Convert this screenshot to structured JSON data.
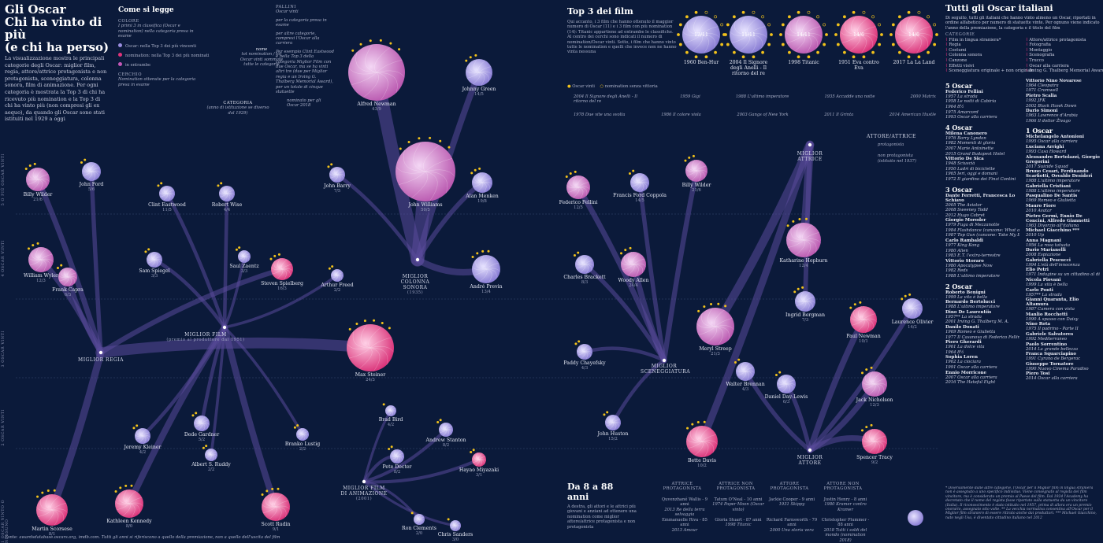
{
  "header": {
    "title_line1": "Gli Oscar",
    "title_line2": "Chi ha vinto di più",
    "title_line3": "(e chi ha perso)",
    "intro": "La visualizzazione mostra le principali categorie degli Oscar: miglior film, regia, attore/attrice protagonista e non protagonista, sceneggiatura, colonna sonora, film di animazione. Per ogni categoria è mostrata la Top 3 di chi ha ricevuto più nomination e la Top 3 di chi ha vinto più (non compresi gli ex aequo), da quando gli Oscar sono stati istituiti nel 1929 a oggi"
  },
  "legend": {
    "title": "Come si legge",
    "colore_label": "COLORE",
    "colore_desc": "I primi 3 in classifica (Oscar e nomination) nella categoria presa in esame",
    "item_oscar": "Oscar: nella Top 3 dei più vincenti",
    "item_nomination": "nomination: nella Top 3 dei più nominati",
    "item_entrambe": "in entrambe",
    "cerchio_label": "CERCHIO",
    "cerchio_desc": "Nomination ottenute per la categoria presa in esame",
    "nome_label": "nome",
    "nome_desc": "tot nomination / tot Oscar vinti sommate tutte le categorie",
    "categoria_label": "CATEGORIA",
    "categoria_desc": "(anno di istituzione se diverso dal 1929)",
    "pallini_label": "PALLINI",
    "pallini_sub": "Oscar vinti",
    "pallini_a": "per la categoria presa in esame",
    "pallini_b": "per altre categorie, compresi l'Oscar alla carriera",
    "pallini_example": "Per esempio Clint Eastwood è nella Top 3 della categoria Miglior Film con due Oscar, ma se ha vinti altri tre (due per Miglior regia e un Irving G. Thalberg Memorial Award), per un totale di cinque statuette",
    "nominated_2018": "nominato per gli Oscar 2018"
  },
  "bands": [
    "5 O PIÙ OSCAR VINTI",
    "4 OSCAR VINTI",
    "3 OSCAR VINTI",
    "2 OSCAR VINTI",
    "1 OSCAR VINTO O NESSUNO"
  ],
  "categories": {
    "regia": "MIGLIOR REGIA",
    "film": "MIGLIOR FILM",
    "film_sub": "(premio al produttore dal 1951)",
    "colonna": "MIGLIOR COLONNA SONORA",
    "colonna_sub": "(1935)",
    "animazione": "MIGLIOR FILM DI ANIMAZIONE",
    "animazione_sub": "(2001)",
    "attrice": "MIGLIOR ATTRICE",
    "sceneggiatura": "MIGLIOR SCENEGGIATURA",
    "attore": "MIGLIOR ATTORE",
    "attore_attrice": "ATTORE/ATTRICE",
    "protagonista": "protagonista",
    "non_protagonista": "non protagonista (istituito nel 1937)"
  },
  "people": [
    {
      "name": "Billy Wilder",
      "stat": "21/6"
    },
    {
      "name": "John Ford",
      "stat": "5/6"
    },
    {
      "name": "Clint Eastwood",
      "stat": "11/5"
    },
    {
      "name": "Robert Wise",
      "stat": "4/4"
    },
    {
      "name": "William Wyler",
      "stat": "12/3"
    },
    {
      "name": "Frank Capra",
      "stat": "6/3"
    },
    {
      "name": "Sam Spiegel",
      "stat": "3/3"
    },
    {
      "name": "Saul Zaentz",
      "stat": "3/3"
    },
    {
      "name": "Steven Spielberg",
      "stat": "16/3"
    },
    {
      "name": "Arthur Freed",
      "stat": "2/2"
    },
    {
      "name": "John Barry",
      "stat": "7/5"
    },
    {
      "name": "Alfred Newman",
      "stat": "43/9"
    },
    {
      "name": "Johnny Green",
      "stat": "14/5"
    },
    {
      "name": "John Williams",
      "stat": "50/5"
    },
    {
      "name": "Alan Menken",
      "stat": "19/8"
    },
    {
      "name": "André Previn",
      "stat": "13/4"
    },
    {
      "name": "Max Steiner",
      "stat": "24/3"
    },
    {
      "name": "Jeremy Kleiner",
      "stat": "4/2"
    },
    {
      "name": "Dede Gardner",
      "stat": "5/2"
    },
    {
      "name": "Albert S. Ruddy",
      "stat": "2/2"
    },
    {
      "name": "Branko Lustig",
      "stat": "2/2"
    },
    {
      "name": "Martin Scorsese",
      "stat": "8/1"
    },
    {
      "name": "Kathleen Kennedy",
      "stat": "8/0"
    },
    {
      "name": "Scott Rudin",
      "stat": "9/1"
    },
    {
      "name": "Brad Bird",
      "stat": "4/2"
    },
    {
      "name": "Andrew Stanton",
      "stat": "8/2"
    },
    {
      "name": "Pete Docter",
      "stat": "8/2"
    },
    {
      "name": "Hayao Miyazaki",
      "stat": "3/1"
    },
    {
      "name": "Ron Clements",
      "stat": "2/0"
    },
    {
      "name": "Chris Sanders",
      "stat": "3/0"
    },
    {
      "name": "Federico Fellini",
      "stat": "12/5"
    },
    {
      "name": "Francis Ford Coppola",
      "stat": "14/5"
    },
    {
      "name": "Billy Wilder",
      "stat": "21/6"
    },
    {
      "name": "Katharine Hepburn",
      "stat": "12/4"
    },
    {
      "name": "Charles Brackett",
      "stat": "8/3"
    },
    {
      "name": "Woody Allen",
      "stat": "24/4"
    },
    {
      "name": "Ingrid Bergman",
      "stat": "7/3"
    },
    {
      "name": "Meryl Streep",
      "stat": "21/3"
    },
    {
      "name": "Paul Newman",
      "stat": "10/1"
    },
    {
      "name": "Laurence Olivier",
      "stat": "14/2"
    },
    {
      "name": "Paddy Chayefsky",
      "stat": "4/3"
    },
    {
      "name": "Walter Brennan",
      "stat": "4/3"
    },
    {
      "name": "Daniel Day-Lewis",
      "stat": "6/3"
    },
    {
      "name": "Jack Nicholson",
      "stat": "12/3"
    },
    {
      "name": "John Huston",
      "stat": "15/2"
    },
    {
      "name": "Bette Davis",
      "stat": "10/2"
    },
    {
      "name": "Spencer Tracy",
      "stat": "9/2"
    }
  ],
  "top3": {
    "title": "Top 3 dei film",
    "desc": "Qui accanto, i 3 film che hanno ottenuto il maggior numero di Oscar (11) e i 3 film con più nomination (14): Titanic appartiene ad entrambe le classifiche. Al centro dei cerchi sono indicati il numero di nomination/Oscar vinti. Sotto, i film che hanno vinto tutte le nomination e quelli che invece non ne hanno vinta nessuna",
    "films": [
      {
        "year": "1960",
        "title": "Ben-Hur",
        "stat": "12/11"
      },
      {
        "year": "2004",
        "title": "Il Signore degli Anelli - Il ritorno del re",
        "stat": "11/11"
      },
      {
        "year": "1998",
        "title": "Titanic",
        "stat": "14/11"
      },
      {
        "year": "1951",
        "title": "Eva contro Eva",
        "stat": "14/6"
      },
      {
        "year": "2017",
        "title": "La La Land",
        "stat": "14/6"
      }
    ],
    "legend_won": "Oscar vinti",
    "legend_lost": "nomination senza vittoria",
    "row1": [
      "2004 Il Signore degli Anelli - Il ritorno del re",
      "1959 Gigi",
      "1988 L'ultimo imperatore",
      "1935 Accadde una notte",
      "2000 Matrix"
    ],
    "row2": [
      "1978 Due vite una svolta",
      "1986 Il colore viola",
      "2003 Gangs of New York",
      "2011 Il Grinta",
      "2014 American Hustle"
    ]
  },
  "ages": {
    "title": "Da 8 a 88 anni",
    "desc": "A destra, gli attori e le attrici più giovani e anziani ad ottenere una nomination come miglior attore/attrice protagonista e non protagonista",
    "col_labels": [
      "ATTRICE PROTAGONISTA",
      "ATTRICE NON PROTAGONISTA",
      "ATTORE PROTAGONISTA",
      "ATTORE NON PROTAGONISTA"
    ],
    "young": [
      {
        "name": "Quvenzhané Wallis",
        "age": "9 anni",
        "film": "2013 Re della terra selvaggia"
      },
      {
        "name": "Tatum O'Neal",
        "age": "10 anni",
        "film": "1974 Paper Moon (Oscar vinto)"
      },
      {
        "name": "Jackie Cooper",
        "age": "9 anni",
        "film": "1931 Skippy"
      },
      {
        "name": "Justin Henry",
        "age": "8 anni",
        "film": "1980 Kramer contro Kramer"
      }
    ],
    "old": [
      {
        "name": "Emmanuelle Riva",
        "age": "85 anni",
        "film": "2013 Amour"
      },
      {
        "name": "Gloria Stuart",
        "age": "87 anni",
        "film": "1998 Titanic"
      },
      {
        "name": "Richard Farnsworth",
        "age": "79 anni",
        "film": "2000 Una storia vera"
      },
      {
        "name": "Christopher Plummer",
        "age": "88 anni",
        "film": "2018 Tutti i soldi del mondo (nomination 2018)"
      }
    ]
  },
  "italiani": {
    "title": "Tutti gli Oscar italiani",
    "desc": "Di seguito, tutti gli italiani che hanno vinto almeno un Oscar, riportati in ordine alfabetico per numero di statuette vinte. Per ognuno viene indicato l'anno della premiazione, la categoria e il titolo del film",
    "cat_label": "CATEGORIE",
    "cats_left": [
      "Film in lingua straniera*",
      "Regia",
      "Costumi",
      "Colonna sonora",
      "Canzone",
      "Effetti visivi",
      "Sceneggiatura originale + non originale"
    ],
    "cats_right": [
      "Attore/attrice protagonista",
      "Fotografia",
      "Montaggio",
      "Scenografia",
      "Trucco",
      "Oscar alla carriera",
      "Irving G. Thalberg Memorial Award"
    ],
    "groups_left": [
      {
        "head": "5 Oscar",
        "entries": [
          {
            "name": "Federico Fellini",
            "items": [
              "1957 La strada",
              "1958 Le notti di Cabiria",
              "1964 8½",
              "1975 Amarcord",
              "1993 Oscar alla carriera"
            ]
          },
          {
            "head2": "4 Oscar"
          },
          {
            "name": "Milena Canonero",
            "items": [
              "1976 Barry Lyndon",
              "1982 Momenti di gloria",
              "2007 Marie Antoinette",
              "2015 Grand Budapest Hotel"
            ]
          },
          {
            "name": "Vittorio De Sica",
            "items": [
              "1948 Sciuscià",
              "1950 Ladri di biciclette",
              "1965 Ieri, oggi e domani",
              "1972 Il giardino dei Finzi Contini"
            ]
          }
        ]
      },
      {
        "head": "3 Oscar",
        "entries": [
          {
            "name": "Dante Ferretti, Francesca Lo Schiavo",
            "items": [
              "2005 The Aviator",
              "2008 Sweeney Todd",
              "2012 Hugo Cabret"
            ]
          },
          {
            "name": "Giorgio Moroder",
            "items": [
              "1979 Fuga di Mezzanotte",
              "1984 Flashdance (canzone: What a Feeling)",
              "1987 Top Gun (canzone: Take My Breath Away)"
            ]
          },
          {
            "name": "Carlo Rambaldi",
            "items": [
              "1977 King Kong",
              "1980 Alien",
              "1983 E.T. l'extra-terrestre"
            ]
          },
          {
            "name": "Vittorio Storaro",
            "items": [
              "1980 Apocalypse Now",
              "1982 Reds",
              "1988 L'ultimo imperatore"
            ]
          }
        ]
      },
      {
        "head": "2 Oscar",
        "entries": [
          {
            "name": "Roberto Benigni",
            "items": [
              "1999 La vita è bella"
            ]
          },
          {
            "name": "Bernardo Bertolucci",
            "items": [
              "1988 L'ultimo imperatore"
            ]
          },
          {
            "name": "Dino De Laurentiis",
            "items": [
              "1957** La strada",
              "2001 Irving G. Thalberg M. A."
            ]
          },
          {
            "name": "Danilo Donati",
            "items": [
              "1969 Romeo e Giulietta",
              "1977 Il Casanova di Federico Fellini"
            ]
          },
          {
            "name": "Piero Gherardi",
            "items": [
              "1961 La dolce vita",
              "1964 8½"
            ]
          },
          {
            "name": "Sophia Loren",
            "items": [
              "1962 La ciociara",
              "1991 Oscar alla carriera"
            ]
          },
          {
            "name": "Ennio Morricone",
            "items": [
              "2007 Oscar alla carriera",
              "2016 The Hateful Eight"
            ]
          }
        ]
      }
    ],
    "groups_right": [
      {
        "name": "Vittorio Nino Novarese",
        "items": [
          "1964 Cleopatra",
          "1971 Cromwell"
        ]
      },
      {
        "name": "Pietro Scalia",
        "items": [
          "1992 JFK",
          "2002 Black Hawk Down"
        ]
      },
      {
        "name": "Dario Simoni",
        "items": [
          "1963 Lawrence d'Arabia",
          "1966 Il dottor Živago"
        ]
      },
      {
        "head": "1 Oscar"
      },
      {
        "name": "Michelangelo Antonioni",
        "items": [
          "1995 Oscar alla carriera"
        ]
      },
      {
        "name": "Luciana Arrighi",
        "items": [
          "1993 Casa Howard"
        ]
      },
      {
        "name": "Alessandro Bertolazzi, Giorgio Gregorini",
        "items": [
          "2017 Suicide Squad"
        ]
      },
      {
        "name": "Bruno Cesari, Ferdinando Scarfiotti, Osvaldo Desideri",
        "items": [
          "1988 L'ultimo imperatore"
        ]
      },
      {
        "name": "Gabriella Cristiani",
        "items": [
          "1988 L'ultimo imperatore"
        ]
      },
      {
        "name": "Pasqualino De Santis",
        "items": [
          "1969 Romeo e Giulietta"
        ]
      },
      {
        "name": "Mauro Fiore",
        "items": [
          "2010 Avatar"
        ]
      },
      {
        "name": "Pietro Germi, Ennio De Concini, Alfredo Giannetti",
        "items": [
          "1963 Divorzio all'italiana"
        ]
      },
      {
        "name": "Michael Giacchino ***",
        "items": [
          "2010 Up"
        ]
      },
      {
        "name": "Anna Magnani",
        "items": [
          "1956 La rosa tatuata"
        ]
      },
      {
        "name": "Dario Marianelli",
        "items": [
          "2008 Espiazione"
        ]
      },
      {
        "name": "Gabriella Pescucci",
        "items": [
          "1994 L'età dell'innocenza"
        ]
      },
      {
        "name": "Elio Petri",
        "items": [
          "1971 Indagine su un cittadino al di sopra di ogni sospetto"
        ]
      },
      {
        "name": "Nicola Piovani",
        "items": [
          "1999 La vita è bella"
        ]
      },
      {
        "name": "Carlo Ponti",
        "items": [
          "1957** La strada"
        ]
      },
      {
        "name": "Gianni Quaranta, Elio Altamura",
        "items": [
          "1987 Camera con vista"
        ]
      },
      {
        "name": "Manlio Rocchetti",
        "items": [
          "1990 A spasso con Daisy"
        ]
      },
      {
        "name": "Nino Rota",
        "items": [
          "1975 Il padrino - Parte II"
        ]
      },
      {
        "name": "Gabriele Salvatores",
        "items": [
          "1992 Mediterraneo"
        ]
      },
      {
        "name": "Paolo Sorrentino",
        "items": [
          "2014 La grande bellezza"
        ]
      },
      {
        "name": "Franca Squarciapino",
        "items": [
          "1991 Cyrano de Bergerac"
        ]
      },
      {
        "name": "Giuseppe Tornatore",
        "items": [
          "1990 Nuovo Cinema Paradiso"
        ]
      },
      {
        "name": "Piero Tosi",
        "items": [
          "2014 Oscar alla carriera"
        ]
      }
    ],
    "footnote": "* Diversamente dalle altre categorie, l'Oscar per il Miglior film in lingua straniera non è assegnato a uno specifico individuo. Viene consegnato al regista del film vincitore, ma è considerato un premio al Paese del film. Dal 1924 l'Academy ha decretato che il nome del regista fosse riportato sulla statuetta da un vincitore (Italia). Il riconoscimento è stato istituito nel 1957, prima di allora era un premio onorario, assegnato otto volte. ** La vecchia normativa consentiva all'Oscar per il Miglior film straniero di essere ritirato anche dai produttori. *** Michael Giacchino, nato negli Usa, è diventato cittadino italiano nel 2012"
  },
  "footer": "Fonte: awardsdatabase.oscars.org, imdb.com. Tutti gli anni si riferiscono a quello della premiazione, non a quello dell'uscita del film",
  "colors": {
    "background": "#0b1a3a",
    "oscar": "#9a8ee0",
    "nomination": "#e0337a",
    "both": "#c458b8",
    "dot_won": "#f2c21b",
    "stream": "#5a4a9a"
  }
}
